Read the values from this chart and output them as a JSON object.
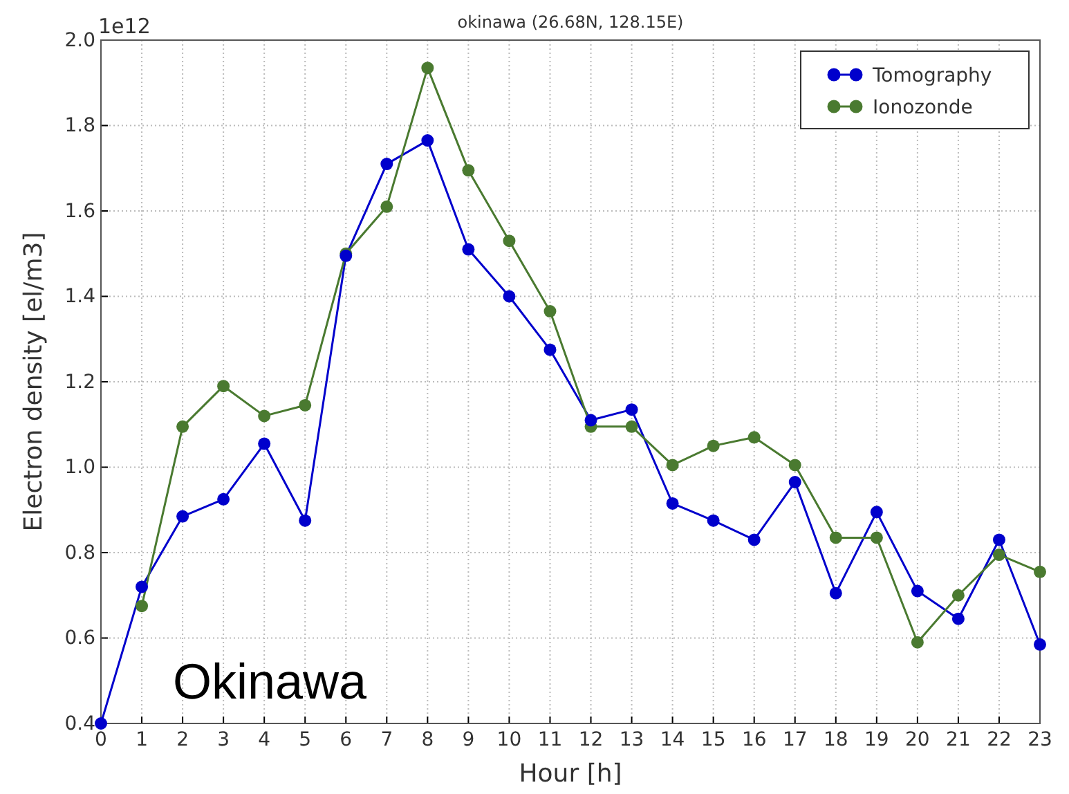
{
  "chart_data": {
    "type": "line",
    "title": "okinawa (26.68N, 128.15E)",
    "xlabel": "Hour [h]",
    "ylabel": "Electron density [el/m3]",
    "x": [
      0,
      1,
      2,
      3,
      4,
      5,
      6,
      7,
      8,
      9,
      10,
      11,
      12,
      13,
      14,
      15,
      16,
      17,
      18,
      19,
      20,
      21,
      22,
      23
    ],
    "series": [
      {
        "name": "Tomography",
        "color": "#0000cc",
        "values": [
          0.4,
          0.72,
          0.885,
          0.925,
          1.055,
          0.875,
          1.495,
          1.71,
          1.765,
          1.51,
          1.4,
          1.275,
          1.11,
          1.135,
          0.915,
          0.875,
          0.83,
          0.965,
          0.705,
          0.895,
          0.71,
          0.645,
          0.83,
          0.585
        ]
      },
      {
        "name": "Ionozonde",
        "color": "#4a7a30",
        "values": [
          null,
          0.675,
          1.095,
          1.19,
          1.12,
          1.145,
          1.5,
          1.61,
          1.935,
          1.695,
          1.53,
          1.365,
          1.095,
          1.095,
          1.005,
          1.05,
          1.07,
          1.005,
          0.835,
          0.835,
          0.59,
          0.7,
          0.795,
          0.755
        ]
      }
    ],
    "xlim": [
      0,
      23
    ],
    "xticks": [
      0,
      1,
      2,
      3,
      4,
      5,
      6,
      7,
      8,
      9,
      10,
      11,
      12,
      13,
      14,
      15,
      16,
      17,
      18,
      19,
      20,
      21,
      22,
      23
    ],
    "ylim": [
      0.4,
      2.0
    ],
    "yticks": [
      {
        "value": 0.4,
        "label": "0.4"
      },
      {
        "value": 0.6,
        "label": "0.6"
      },
      {
        "value": 0.8,
        "label": "0.8"
      },
      {
        "value": 1.0,
        "label": "1.0"
      },
      {
        "value": 1.2,
        "label": "1.2"
      },
      {
        "value": 1.4,
        "label": "1.4"
      },
      {
        "value": 1.6,
        "label": "1.6"
      },
      {
        "value": 1.8,
        "label": "1.8"
      },
      {
        "value": 2.0,
        "label": "2.0"
      }
    ],
    "annotations": [
      "1e12",
      "Okinawa"
    ],
    "grid": true,
    "legend": "top right",
    "marker": "circle",
    "line_style": "solid"
  }
}
